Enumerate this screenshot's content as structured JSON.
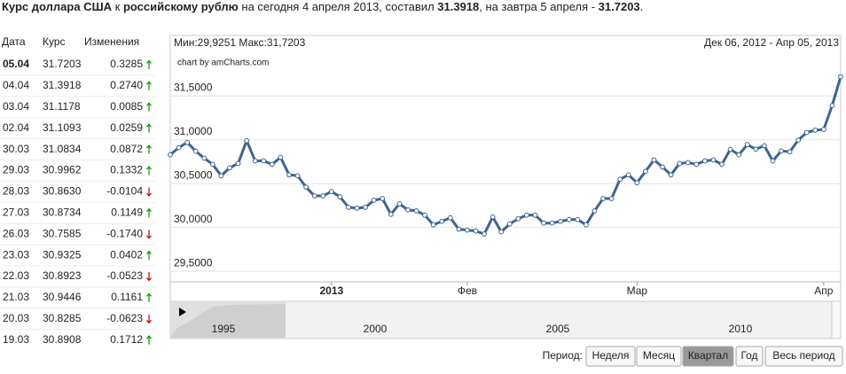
{
  "header": {
    "parts": [
      {
        "text": "Курс доллара США",
        "bold": true
      },
      {
        "text": " к ",
        "bold": false
      },
      {
        "text": "российскому рублю",
        "bold": true
      },
      {
        "text": " на сегодня 4 апреля 2013, составил ",
        "bold": false
      },
      {
        "text": "31.3918",
        "bold": true
      },
      {
        "text": ", на завтра 5 апреля - ",
        "bold": false
      },
      {
        "text": "31.7203",
        "bold": true
      },
      {
        "text": ".",
        "bold": false
      }
    ]
  },
  "table": {
    "columns": [
      "Дата",
      "Курс",
      "Изменения"
    ],
    "rows": [
      [
        "05.04",
        "31.7203",
        "0.3285"
      ],
      [
        "04.04",
        "31.3918",
        "0.2740"
      ],
      [
        "03.04",
        "31.1178",
        "0.0085"
      ],
      [
        "02.04",
        "31.1093",
        "0.0259"
      ],
      [
        "30.03",
        "31.0834",
        "0.0872"
      ],
      [
        "29.03",
        "30.9962",
        "0.1332"
      ],
      [
        "28.03",
        "30.8630",
        "-0.0104"
      ],
      [
        "27.03",
        "30.8734",
        "0.1149"
      ],
      [
        "26.03",
        "30.7585",
        "-0.1740"
      ],
      [
        "23.03",
        "30.9325",
        "0.0402"
      ],
      [
        "22.03",
        "30.8923",
        "-0.0523"
      ],
      [
        "21.03",
        "30.9446",
        "0.1161"
      ],
      [
        "20.03",
        "30.8285",
        "-0.0623"
      ],
      [
        "19.03",
        "30.8908",
        "0.1712"
      ]
    ]
  },
  "chart_data": {
    "type": "line",
    "min_max": "Мин:29,9251 Макс:31,7203",
    "date_range": "Дек 06, 2012 - Апр 05, 2013",
    "credit": "chart by amCharts.com",
    "categories": [
      null,
      null,
      null,
      null,
      null,
      null,
      null,
      null,
      null,
      null,
      null,
      null,
      null,
      null,
      null,
      null,
      null,
      null,
      null,
      "2013",
      null,
      null,
      null,
      null,
      null,
      null,
      null,
      null,
      null,
      null,
      null,
      null,
      null,
      null,
      null,
      "Фев",
      null,
      null,
      null,
      null,
      null,
      null,
      null,
      null,
      null,
      null,
      null,
      null,
      null,
      null,
      null,
      null,
      null,
      null,
      null,
      "Мар",
      null,
      null,
      null,
      null,
      null,
      null,
      null,
      null,
      null,
      null,
      null,
      null,
      null,
      null,
      null,
      null,
      null,
      null,
      null,
      null,
      null,
      "Апр",
      null,
      null
    ],
    "series": [
      {
        "color": "#3d6591",
        "values": [
          30.83,
          30.91,
          30.97,
          30.87,
          30.79,
          30.72,
          30.59,
          30.68,
          30.73,
          30.99,
          30.76,
          30.76,
          30.72,
          30.8,
          30.6,
          30.59,
          30.46,
          30.36,
          30.36,
          30.41,
          30.35,
          30.23,
          30.22,
          30.23,
          30.31,
          30.33,
          30.15,
          30.27,
          30.2,
          30.19,
          30.14,
          30.03,
          30.07,
          30.11,
          29.98,
          29.97,
          29.96,
          29.9251,
          30.12,
          29.95,
          30.04,
          30.1,
          30.14,
          30.14,
          30.05,
          30.05,
          30.07,
          30.09,
          30.09,
          30.03,
          30.19,
          30.33,
          30.33,
          30.55,
          30.6,
          30.51,
          30.64,
          30.77,
          30.69,
          30.6,
          30.73,
          30.74,
          30.72,
          30.76,
          30.77,
          30.72,
          30.8908,
          30.8285,
          30.9446,
          30.8923,
          30.9325,
          30.7585,
          30.8734,
          30.863,
          30.9962,
          31.0834,
          31.1093,
          31.1178,
          31.3918,
          31.7203
        ]
      }
    ],
    "ylim": [
      29.38,
      32.19
    ],
    "yticks": [
      {
        "value": 29.5,
        "label": "29,5000"
      },
      {
        "value": 30,
        "label": "30,0000"
      },
      {
        "value": 30.5,
        "label": "30,5000"
      },
      {
        "value": 31,
        "label": "31,0000"
      },
      {
        "value": 31.5,
        "label": "31,5000"
      }
    ],
    "grid": true
  },
  "navigator": {
    "labels": [
      "1995",
      "2000",
      "2005",
      "2010"
    ]
  },
  "controls": {
    "label": "Период:",
    "buttons": [
      "Неделя",
      "Месяц",
      "Квартал",
      "Год",
      "Весь период"
    ],
    "active_index": 2
  }
}
